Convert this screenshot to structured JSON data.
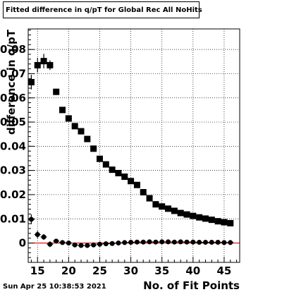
{
  "chart_data": {
    "type": "scatter",
    "title": "Fitted difference in q/pT for Global Rec All NoHits",
    "xlabel": "No. of Fit Points",
    "ylabel": "difference in q/pT",
    "xlim": [
      13.5,
      47.5
    ],
    "ylim": [
      -0.008,
      0.0885
    ],
    "xticks": [
      15,
      20,
      25,
      30,
      35,
      40,
      45
    ],
    "yticks": [
      0,
      0.01,
      0.02,
      0.03,
      0.04,
      0.05,
      0.06,
      0.07,
      0.08
    ],
    "ytick_labels": [
      "0",
      "0.01",
      "0.02",
      "0.03",
      "0.04",
      "0.05",
      "0.06",
      "0.07",
      "0.08"
    ],
    "grid": true,
    "reference_line": {
      "y": 0,
      "color": "#e00000"
    },
    "series": [
      {
        "marker": "square",
        "color": "#000000",
        "x": [
          14,
          15,
          16,
          17,
          18,
          19,
          20,
          21,
          22,
          23,
          24,
          25,
          26,
          27,
          28,
          29,
          30,
          31,
          32,
          33,
          34,
          35,
          36,
          37,
          38,
          39,
          40,
          41,
          42,
          43,
          44,
          45,
          46
        ],
        "y": [
          0.0665,
          0.0735,
          0.0752,
          0.0735,
          0.0625,
          0.055,
          0.0515,
          0.0483,
          0.0462,
          0.043,
          0.039,
          0.0348,
          0.0325,
          0.0303,
          0.0289,
          0.0274,
          0.0256,
          0.024,
          0.021,
          0.0185,
          0.016,
          0.0151,
          0.0142,
          0.0133,
          0.0124,
          0.0118,
          0.0112,
          0.0106,
          0.0101,
          0.0096,
          0.009,
          0.0086,
          0.0082
        ],
        "yerr": [
          0.003,
          0.003,
          0.003,
          0.002,
          0.0012,
          0.0008,
          0.0006,
          0.0005,
          0.0005,
          0.0004,
          0.0004,
          0.0004,
          0.0003,
          0.0003,
          0.0003,
          0.0003,
          0.0003,
          0.0003,
          0.0003,
          0.0003,
          0.0003,
          0.0003,
          0.0003,
          0.0003,
          0.0003,
          0.0003,
          0.0003,
          0.0003,
          0.0003,
          0.0003,
          0.0003,
          0.0003,
          0.0003
        ]
      },
      {
        "marker": "circle",
        "color": "#000000",
        "x": [
          14,
          15,
          16,
          17,
          18,
          19,
          20,
          21,
          22,
          23,
          24,
          25,
          26,
          27,
          28,
          29,
          30,
          31,
          32,
          33,
          34,
          35,
          36,
          37,
          38,
          39,
          40,
          41,
          42,
          43,
          44,
          45,
          46
        ],
        "y": [
          0.0098,
          0.0035,
          0.0025,
          -0.0005,
          0.0008,
          0.0002,
          0.0,
          -0.0008,
          -0.001,
          -0.001,
          -0.0008,
          -0.0005,
          -0.0003,
          -0.0002,
          0.0,
          0.0002,
          0.0003,
          0.0004,
          0.0004,
          0.0005,
          0.0004,
          0.0005,
          0.0005,
          0.0004,
          0.0005,
          0.0004,
          0.0004,
          0.0003,
          0.0003,
          0.0003,
          0.0003,
          0.0002,
          0.0002
        ],
        "yerr": [
          0.002,
          0.0015,
          0.0012,
          0.0012,
          0.0008,
          0.0005,
          0.0004,
          0.0004,
          0.0003,
          0.0003,
          0.0003,
          0.0003,
          0.0003,
          0.0003,
          0.0003,
          0.0003,
          0.0003,
          0.0003,
          0.0003,
          0.0003,
          0.0003,
          0.0003,
          0.0003,
          0.0003,
          0.0003,
          0.0003,
          0.0003,
          0.0003,
          0.0003,
          0.0003,
          0.0003,
          0.0003,
          0.0003
        ]
      }
    ]
  },
  "footer": {
    "timestamp": "Sun Apr 25 10:38:53 2021"
  }
}
